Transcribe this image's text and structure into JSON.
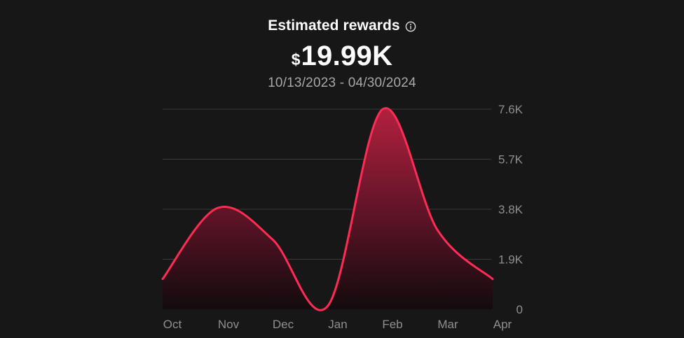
{
  "header": {
    "title": "Estimated rewards",
    "currency_symbol": "$",
    "amount": "19.99K",
    "date_range": "10/13/2023 - 04/30/2024",
    "info_icon": "info-icon"
  },
  "colors": {
    "background": "#171717",
    "line": "#fe2c55",
    "area_top": "#b3203f",
    "grid": "#3a3a3a",
    "tick_text": "#8f8f8f"
  },
  "chart_data": {
    "type": "area",
    "x_labels": [
      "Oct",
      "Nov",
      "Dec",
      "Jan",
      "Feb",
      "Mar",
      "Apr"
    ],
    "y_ticks": [
      {
        "value": 0,
        "label": "0"
      },
      {
        "value": 1900,
        "label": "1.9K"
      },
      {
        "value": 3800,
        "label": "3.8K"
      },
      {
        "value": 5700,
        "label": "5.7K"
      },
      {
        "value": 7600,
        "label": "7.6K"
      }
    ],
    "ylim": [
      0,
      7600
    ],
    "xlim": [
      0,
      6
    ],
    "series": [
      {
        "points": [
          {
            "x": 0.0,
            "y": 1150
          },
          {
            "x": 1.0,
            "y": 3850
          },
          {
            "x": 2.0,
            "y": 2650
          },
          {
            "x": 3.0,
            "y": 120
          },
          {
            "x": 4.0,
            "y": 7600
          },
          {
            "x": 5.0,
            "y": 3000
          },
          {
            "x": 6.0,
            "y": 1150
          }
        ]
      }
    ],
    "grid": true,
    "y_axis_side": "right"
  }
}
